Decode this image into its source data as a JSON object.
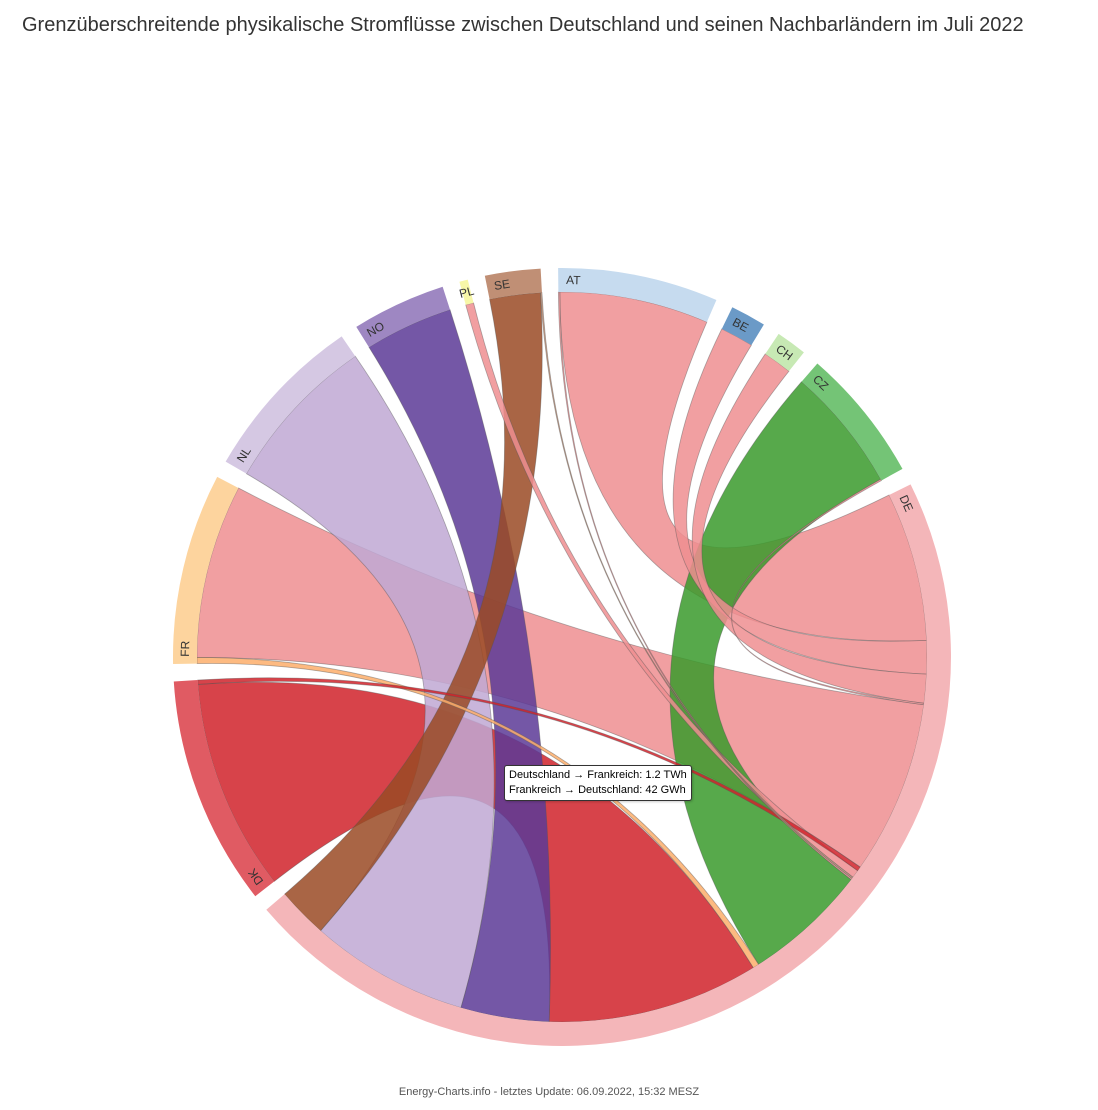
{
  "title": "Grenzüberschreitende physikalische Stromflüsse zwischen Deutschland und seinen Nachbarländern im Juli 2022",
  "footer": "Energy-Charts.info - letztes Update: 06.09.2022, 15:32 MESZ",
  "tooltip": {
    "line1": "Deutschland → Frankreich: 1.2 TWh",
    "line2": "Frankreich → Deutschland: 42 GWh"
  },
  "chart_data": {
    "type": "chord",
    "unit": "GWh",
    "nodes": [
      {
        "id": "AT",
        "label": "AT",
        "color": "#c6dbef"
      },
      {
        "id": "BE",
        "label": "BE",
        "color": "#6b9ac7"
      },
      {
        "id": "CH",
        "label": "CH",
        "color": "#c7e9b4"
      },
      {
        "id": "CZ",
        "label": "CZ",
        "color": "#74c476"
      },
      {
        "id": "DE",
        "label": "DE",
        "color": "#f4b6b9"
      },
      {
        "id": "DK",
        "label": "DK",
        "color": "#e05b63"
      },
      {
        "id": "FR",
        "label": "FR",
        "color": "#fdd49e"
      },
      {
        "id": "NL",
        "label": "NL",
        "color": "#d5c8e3"
      },
      {
        "id": "NO",
        "label": "NO",
        "color": "#9e87c2"
      },
      {
        "id": "PL",
        "label": "PL",
        "color": "#f7f7a8"
      },
      {
        "id": "SE",
        "label": "SE",
        "color": "#c08f75"
      }
    ],
    "flows": [
      {
        "from": "DE",
        "to": "AT",
        "value": 1030,
        "color": "#ef8e91"
      },
      {
        "from": "AT",
        "to": "DE",
        "value": 10,
        "color": "#ef8e91"
      },
      {
        "from": "DE",
        "to": "BE",
        "value": 230,
        "color": "#ef8e91"
      },
      {
        "from": "DE",
        "to": "CH",
        "value": 200,
        "color": "#ef8e91"
      },
      {
        "from": "CZ",
        "to": "DE",
        "value": 860,
        "color": "#3a9a2c"
      },
      {
        "from": "DE",
        "to": "CZ",
        "value": 10,
        "color": "#ef8e91"
      },
      {
        "from": "DE",
        "to": "FR",
        "value": 1200,
        "color": "#ef8e91"
      },
      {
        "from": "FR",
        "to": "DE",
        "value": 42,
        "color": "#fdae6b"
      },
      {
        "from": "DK",
        "to": "DE",
        "value": 1460,
        "color": "#d0222a"
      },
      {
        "from": "DE",
        "to": "DK",
        "value": 30,
        "color": "#d0222a"
      },
      {
        "from": "NO",
        "to": "DE",
        "value": 610,
        "color": "#5c3a96"
      },
      {
        "from": "NL",
        "to": "DE",
        "value": 1100,
        "color": "#bfa8d4"
      },
      {
        "from": "DE",
        "to": "PL",
        "value": 55,
        "color": "#ef8e91"
      },
      {
        "from": "SE",
        "to": "DE",
        "value": 350,
        "color": "#9a4a25"
      },
      {
        "from": "DE",
        "to": "SE",
        "value": 10,
        "color": "#c08f75"
      }
    ]
  }
}
